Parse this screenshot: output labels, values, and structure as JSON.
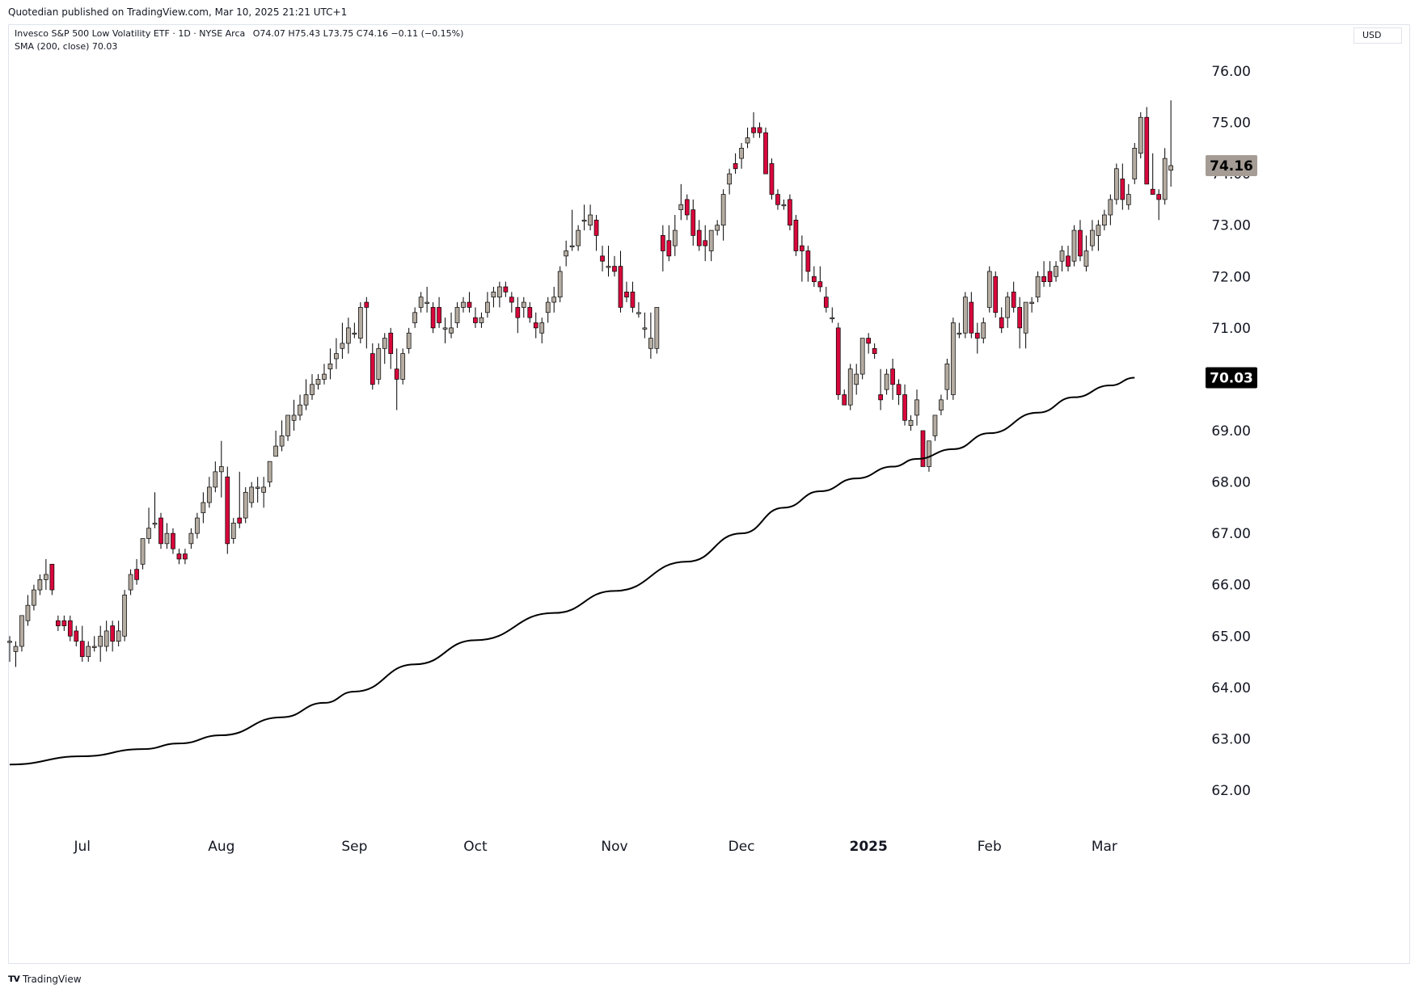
{
  "header": {
    "published_line": "Quotedian published on TradingView.com, Mar 10, 2025 21:21 UTC+1"
  },
  "legend": {
    "instrument": "Invesco S&P 500 Low Volatility ETF · 1D · NYSE Arca",
    "ohlc": "O74.07 H75.43 L73.75 C74.16 −0.11 (−0.15%)",
    "sma": "SMA (200, close) 70.03"
  },
  "currency_label": "USD",
  "footer": {
    "brand": "TradingView"
  },
  "colors": {
    "up": "#b5aca2",
    "down": "#d8083c",
    "sma": "#000000",
    "last_price_bg": "#a59d95"
  },
  "chart_data": {
    "type": "candlestick",
    "ylim": [
      61.2,
      76.7
    ],
    "yticks": [
      "76.00",
      "75.00",
      "74.00",
      "73.00",
      "72.00",
      "71.00",
      "70.00",
      "69.00",
      "68.00",
      "67.00",
      "66.00",
      "65.00",
      "64.00",
      "63.00",
      "62.00"
    ],
    "xticks": [
      {
        "label": "Jul",
        "index": 12
      },
      {
        "label": "Aug",
        "index": 35
      },
      {
        "label": "Sep",
        "index": 57
      },
      {
        "label": "Oct",
        "index": 77
      },
      {
        "label": "Nov",
        "index": 100
      },
      {
        "label": "Dec",
        "index": 121
      },
      {
        "label": "2025",
        "index": 142
      },
      {
        "label": "Feb",
        "index": 162
      },
      {
        "label": "Mar",
        "index": 181
      }
    ],
    "last_price": "74.16",
    "sma_value": "70.03",
    "candles": [
      [
        64.9,
        65.0,
        64.5,
        64.9
      ],
      [
        64.7,
        64.9,
        64.4,
        64.8
      ],
      [
        64.8,
        65.4,
        64.7,
        65.4
      ],
      [
        65.3,
        65.8,
        65.2,
        65.6
      ],
      [
        65.6,
        66.0,
        65.5,
        65.9
      ],
      [
        65.9,
        66.2,
        65.8,
        66.1
      ],
      [
        66.1,
        66.5,
        65.9,
        66.2
      ],
      [
        66.4,
        66.4,
        65.8,
        65.9
      ],
      [
        65.3,
        65.4,
        65.1,
        65.2
      ],
      [
        65.3,
        65.4,
        65.1,
        65.2
      ],
      [
        65.3,
        65.4,
        64.9,
        65.0
      ],
      [
        65.1,
        65.2,
        64.8,
        64.9
      ],
      [
        64.9,
        65.2,
        64.5,
        64.6
      ],
      [
        64.6,
        64.9,
        64.5,
        64.8
      ],
      [
        64.8,
        65.0,
        64.7,
        64.8
      ],
      [
        64.8,
        65.2,
        64.5,
        65.0
      ],
      [
        64.8,
        65.3,
        64.7,
        65.1
      ],
      [
        65.2,
        65.3,
        64.7,
        64.9
      ],
      [
        64.9,
        65.3,
        64.8,
        65.1
      ],
      [
        65.0,
        65.9,
        64.9,
        65.8
      ],
      [
        65.9,
        66.3,
        65.8,
        66.2
      ],
      [
        66.3,
        66.5,
        66.0,
        66.1
      ],
      [
        66.4,
        66.9,
        66.3,
        66.9
      ],
      [
        66.9,
        67.5,
        66.8,
        67.1
      ],
      [
        67.2,
        67.8,
        67.1,
        67.2
      ],
      [
        67.3,
        67.4,
        66.7,
        66.8
      ],
      [
        66.8,
        67.2,
        66.7,
        67.0
      ],
      [
        67.0,
        67.1,
        66.6,
        66.7
      ],
      [
        66.6,
        66.7,
        66.4,
        66.5
      ],
      [
        66.6,
        66.7,
        66.4,
        66.5
      ],
      [
        66.8,
        67.1,
        66.7,
        67.0
      ],
      [
        67.0,
        67.4,
        66.9,
        67.3
      ],
      [
        67.4,
        67.8,
        67.2,
        67.6
      ],
      [
        67.6,
        68.1,
        67.5,
        67.9
      ],
      [
        67.9,
        68.4,
        67.8,
        68.2
      ],
      [
        68.2,
        68.8,
        67.7,
        68.3
      ],
      [
        68.1,
        68.3,
        66.6,
        66.8
      ],
      [
        66.9,
        67.3,
        66.8,
        67.2
      ],
      [
        67.3,
        68.2,
        67.1,
        67.2
      ],
      [
        67.3,
        67.9,
        67.2,
        67.8
      ],
      [
        67.6,
        68.0,
        67.5,
        67.9
      ],
      [
        67.9,
        68.1,
        67.6,
        67.9
      ],
      [
        67.8,
        68.1,
        67.5,
        67.9
      ],
      [
        68.0,
        68.4,
        67.9,
        68.4
      ],
      [
        68.5,
        69.0,
        68.5,
        68.7
      ],
      [
        68.7,
        69.2,
        68.6,
        68.9
      ],
      [
        68.9,
        69.2,
        68.8,
        69.3
      ],
      [
        69.2,
        69.6,
        69.0,
        69.3
      ],
      [
        69.3,
        69.7,
        69.2,
        69.5
      ],
      [
        69.5,
        70.0,
        69.4,
        69.7
      ],
      [
        69.7,
        70.1,
        69.6,
        69.9
      ],
      [
        69.9,
        70.1,
        69.8,
        70.0
      ],
      [
        70.0,
        70.3,
        69.9,
        70.1
      ],
      [
        70.2,
        70.6,
        70.0,
        70.3
      ],
      [
        70.4,
        70.8,
        70.2,
        70.5
      ],
      [
        70.6,
        71.1,
        70.4,
        70.7
      ],
      [
        70.7,
        71.2,
        70.5,
        71.0
      ],
      [
        70.9,
        71.1,
        70.8,
        70.9
      ],
      [
        70.8,
        71.5,
        70.7,
        71.4
      ],
      [
        71.5,
        71.6,
        70.6,
        71.4
      ],
      [
        70.5,
        70.7,
        69.8,
        69.9
      ],
      [
        70.0,
        70.7,
        69.9,
        70.6
      ],
      [
        70.6,
        70.9,
        70.3,
        70.8
      ],
      [
        70.9,
        71.0,
        70.2,
        70.5
      ],
      [
        70.2,
        70.6,
        69.4,
        70.0
      ],
      [
        70.0,
        70.6,
        69.9,
        70.5
      ],
      [
        70.6,
        71.0,
        70.5,
        70.9
      ],
      [
        71.1,
        71.4,
        71.0,
        71.3
      ],
      [
        71.4,
        71.7,
        71.3,
        71.6
      ],
      [
        71.5,
        71.8,
        71.3,
        71.5
      ],
      [
        71.4,
        71.5,
        70.9,
        71.0
      ],
      [
        71.4,
        71.6,
        71.0,
        71.1
      ],
      [
        71.0,
        71.2,
        70.7,
        71.0
      ],
      [
        70.9,
        71.3,
        70.8,
        71.0
      ],
      [
        71.1,
        71.5,
        71.0,
        71.4
      ],
      [
        71.4,
        71.6,
        71.3,
        71.5
      ],
      [
        71.5,
        71.7,
        71.3,
        71.4
      ],
      [
        71.2,
        71.4,
        71.0,
        71.1
      ],
      [
        71.1,
        71.3,
        71.0,
        71.2
      ],
      [
        71.3,
        71.7,
        71.2,
        71.5
      ],
      [
        71.6,
        71.8,
        71.4,
        71.7
      ],
      [
        71.6,
        71.9,
        71.4,
        71.8
      ],
      [
        71.8,
        71.9,
        71.6,
        71.7
      ],
      [
        71.6,
        71.7,
        71.3,
        71.5
      ],
      [
        71.4,
        71.6,
        70.9,
        71.2
      ],
      [
        71.4,
        71.6,
        71.2,
        71.5
      ],
      [
        71.4,
        71.5,
        71.1,
        71.2
      ],
      [
        71.1,
        71.3,
        70.8,
        71.0
      ],
      [
        70.9,
        71.2,
        70.7,
        71.1
      ],
      [
        71.3,
        71.6,
        71.1,
        71.5
      ],
      [
        71.5,
        71.8,
        71.3,
        71.6
      ],
      [
        71.6,
        72.2,
        71.5,
        72.1
      ],
      [
        72.4,
        72.7,
        72.2,
        72.5
      ],
      [
        72.6,
        73.3,
        72.5,
        72.6
      ],
      [
        72.6,
        73.0,
        72.5,
        72.9
      ],
      [
        73.1,
        73.4,
        72.9,
        73.1
      ],
      [
        73.0,
        73.4,
        72.9,
        73.2
      ],
      [
        73.1,
        73.2,
        72.5,
        72.8
      ],
      [
        72.4,
        72.6,
        72.1,
        72.3
      ],
      [
        72.2,
        72.6,
        72.0,
        72.2
      ],
      [
        72.2,
        72.4,
        72.0,
        72.1
      ],
      [
        72.2,
        72.5,
        71.3,
        71.4
      ],
      [
        71.7,
        71.9,
        71.5,
        71.6
      ],
      [
        71.7,
        71.9,
        71.3,
        71.4
      ],
      [
        71.3,
        71.5,
        71.2,
        71.3
      ],
      [
        71.0,
        71.3,
        70.8,
        71.0
      ],
      [
        70.6,
        71.3,
        70.4,
        70.8
      ],
      [
        70.6,
        71.4,
        70.5,
        71.4
      ],
      [
        72.8,
        73.0,
        72.1,
        72.5
      ],
      [
        72.7,
        73.0,
        72.3,
        72.4
      ],
      [
        72.6,
        73.2,
        72.4,
        72.9
      ],
      [
        73.3,
        73.8,
        73.1,
        73.4
      ],
      [
        73.5,
        73.6,
        73.1,
        73.2
      ],
      [
        73.3,
        73.5,
        72.6,
        72.8
      ],
      [
        72.9,
        73.1,
        72.5,
        72.6
      ],
      [
        72.7,
        73.0,
        72.3,
        72.6
      ],
      [
        72.5,
        72.9,
        72.3,
        72.9
      ],
      [
        72.9,
        73.1,
        72.8,
        73.0
      ],
      [
        73.0,
        73.7,
        72.7,
        73.6
      ],
      [
        73.8,
        74.1,
        73.6,
        74.0
      ],
      [
        74.2,
        74.4,
        74.0,
        74.1
      ],
      [
        74.3,
        74.6,
        74.1,
        74.5
      ],
      [
        74.6,
        74.9,
        74.5,
        74.7
      ],
      [
        74.9,
        75.2,
        74.7,
        74.8
      ],
      [
        74.9,
        75.0,
        74.7,
        74.8
      ],
      [
        74.8,
        74.9,
        74.0,
        74.0
      ],
      [
        74.2,
        74.3,
        73.5,
        73.6
      ],
      [
        73.6,
        73.7,
        73.3,
        73.4
      ],
      [
        73.4,
        73.5,
        73.3,
        73.4
      ],
      [
        73.5,
        73.6,
        72.9,
        73.0
      ],
      [
        73.1,
        73.2,
        72.4,
        72.5
      ],
      [
        72.6,
        72.8,
        71.9,
        72.5
      ],
      [
        72.5,
        72.6,
        71.9,
        72.1
      ],
      [
        72.0,
        72.2,
        71.8,
        71.9
      ],
      [
        71.9,
        72.2,
        71.7,
        71.8
      ],
      [
        71.6,
        71.8,
        71.3,
        71.4
      ],
      [
        71.2,
        71.4,
        71.1,
        71.2
      ],
      [
        71.0,
        71.1,
        69.6,
        69.7
      ],
      [
        69.7,
        69.8,
        69.5,
        69.5
      ],
      [
        69.5,
        70.3,
        69.4,
        70.2
      ],
      [
        69.9,
        70.3,
        69.7,
        70.1
      ],
      [
        70.1,
        70.8,
        70.0,
        70.8
      ],
      [
        70.8,
        70.9,
        70.5,
        70.7
      ],
      [
        70.6,
        70.7,
        70.4,
        70.5
      ],
      [
        69.7,
        70.2,
        69.4,
        69.6
      ],
      [
        69.8,
        70.2,
        69.7,
        70.1
      ],
      [
        70.2,
        70.4,
        69.6,
        69.9
      ],
      [
        69.9,
        70.0,
        69.5,
        69.7
      ],
      [
        69.7,
        69.9,
        69.1,
        69.2
      ],
      [
        69.1,
        69.3,
        69.0,
        69.2
      ],
      [
        69.3,
        69.8,
        69.1,
        69.6
      ],
      [
        69.0,
        69.0,
        68.3,
        68.3
      ],
      [
        68.3,
        68.8,
        68.2,
        68.8
      ],
      [
        68.9,
        69.3,
        68.8,
        69.3
      ],
      [
        69.4,
        69.7,
        69.3,
        69.6
      ],
      [
        69.8,
        70.4,
        69.6,
        70.3
      ],
      [
        69.7,
        71.2,
        69.6,
        71.1
      ],
      [
        70.9,
        71.1,
        70.8,
        70.9
      ],
      [
        70.9,
        71.7,
        70.8,
        71.6
      ],
      [
        71.5,
        71.7,
        70.8,
        70.9
      ],
      [
        70.9,
        71.1,
        70.5,
        70.8
      ],
      [
        70.8,
        71.2,
        70.7,
        71.1
      ],
      [
        71.4,
        72.2,
        71.3,
        72.1
      ],
      [
        72.0,
        72.1,
        71.2,
        71.3
      ],
      [
        71.2,
        71.4,
        70.9,
        71.0
      ],
      [
        71.2,
        71.7,
        71.0,
        71.6
      ],
      [
        71.7,
        71.9,
        71.3,
        71.4
      ],
      [
        71.4,
        71.6,
        70.6,
        71.0
      ],
      [
        70.9,
        71.5,
        70.6,
        71.5
      ],
      [
        71.5,
        71.6,
        71.3,
        71.5
      ],
      [
        71.6,
        72.1,
        71.5,
        72.0
      ],
      [
        72.0,
        72.3,
        71.8,
        71.9
      ],
      [
        72.1,
        72.3,
        71.8,
        71.9
      ],
      [
        72.0,
        72.3,
        71.9,
        72.2
      ],
      [
        72.3,
        72.6,
        72.1,
        72.5
      ],
      [
        72.4,
        72.6,
        72.1,
        72.2
      ],
      [
        72.3,
        73.0,
        72.2,
        72.9
      ],
      [
        72.9,
        73.1,
        72.3,
        72.4
      ],
      [
        72.2,
        72.8,
        72.1,
        72.5
      ],
      [
        72.6,
        73.1,
        72.5,
        72.9
      ],
      [
        72.8,
        73.1,
        72.5,
        73.0
      ],
      [
        73.0,
        73.3,
        72.9,
        73.2
      ],
      [
        73.2,
        73.6,
        73.0,
        73.5
      ],
      [
        73.5,
        74.2,
        73.4,
        74.1
      ],
      [
        73.9,
        74.2,
        73.3,
        73.5
      ],
      [
        73.4,
        73.8,
        73.3,
        73.6
      ],
      [
        73.9,
        74.6,
        73.8,
        74.5
      ],
      [
        74.4,
        75.2,
        74.3,
        75.1
      ],
      [
        75.1,
        75.3,
        73.8,
        73.8
      ],
      [
        73.7,
        74.4,
        73.6,
        73.6
      ],
      [
        73.6,
        73.7,
        73.1,
        73.5
      ],
      [
        73.5,
        74.5,
        73.4,
        74.3
      ],
      [
        74.07,
        75.43,
        73.75,
        74.16
      ]
    ],
    "sma": [
      [
        0,
        62.5
      ],
      [
        12,
        62.66
      ],
      [
        22,
        62.8
      ],
      [
        28,
        62.91
      ],
      [
        35,
        63.07
      ],
      [
        45,
        63.42
      ],
      [
        52,
        63.7
      ],
      [
        57,
        63.92
      ],
      [
        67,
        64.45
      ],
      [
        77,
        64.92
      ],
      [
        90,
        65.45
      ],
      [
        100,
        65.88
      ],
      [
        112,
        66.45
      ],
      [
        121,
        67.0
      ],
      [
        128,
        67.5
      ],
      [
        134,
        67.82
      ],
      [
        140,
        68.07
      ],
      [
        146,
        68.3
      ],
      [
        150,
        68.45
      ],
      [
        156,
        68.64
      ],
      [
        162,
        68.95
      ],
      [
        170,
        69.35
      ],
      [
        176,
        69.65
      ],
      [
        182,
        69.88
      ],
      [
        186,
        70.03
      ]
    ]
  }
}
